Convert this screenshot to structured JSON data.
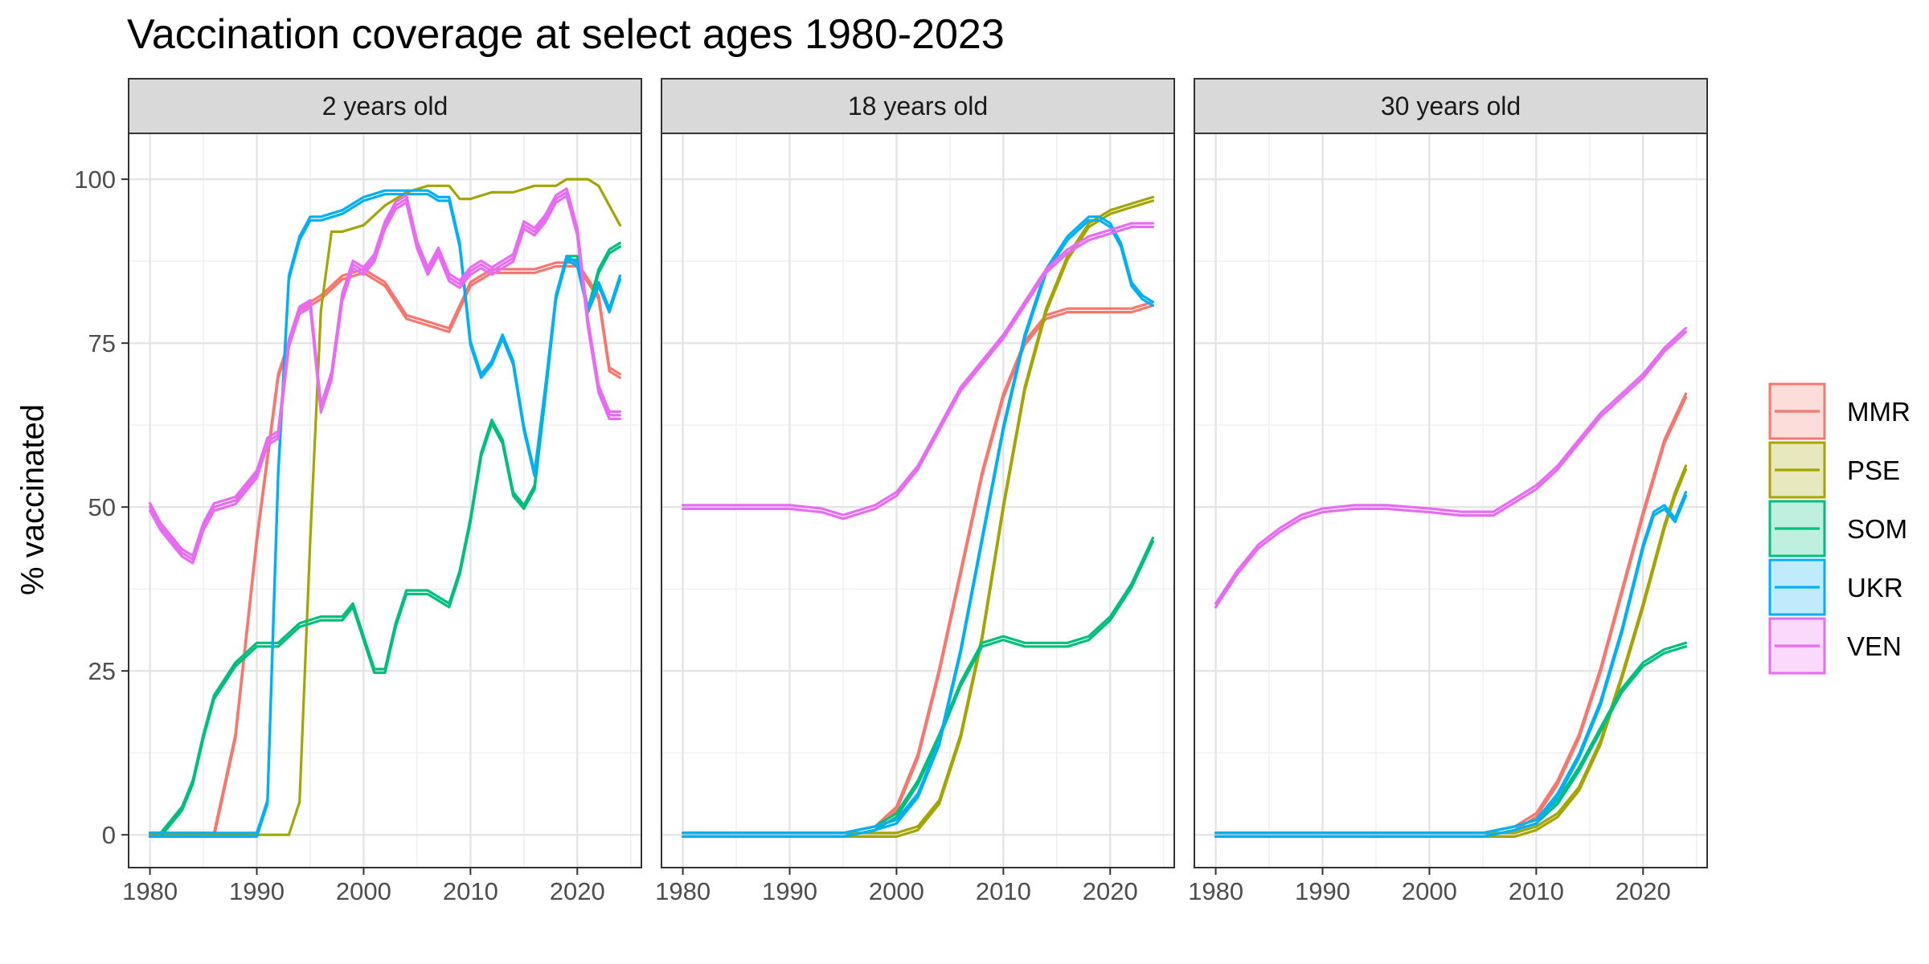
{
  "chart_data": {
    "type": "line",
    "title": "Vaccination coverage at select ages 1980-2023",
    "ylabel": "% vaccinated",
    "xlabel": "",
    "xlim": [
      1978,
      2026
    ],
    "ylim": [
      -5,
      107
    ],
    "x_ticks": [
      1980,
      1990,
      2000,
      2010,
      2020
    ],
    "y_ticks": [
      0,
      25,
      50,
      75,
      100
    ],
    "grid": true,
    "legend_position": "right",
    "colors": {
      "MMR": "#F8766D",
      "PSE": "#A3A500",
      "SOM": "#00BF7D",
      "UKR": "#00B0F6",
      "VEN": "#E76BF3"
    },
    "legend": [
      "MMR",
      "PSE",
      "SOM",
      "UKR",
      "VEN"
    ],
    "panels": [
      {
        "label": "2 years old",
        "series": [
          {
            "name": "MMR",
            "x": [
              1980,
              1985,
              1986,
              1988,
              1990,
              1992,
              1994,
              1996,
              1998,
              2000,
              2002,
              2004,
              2006,
              2008,
              2010,
              2012,
              2014,
              2016,
              2018,
              2020,
              2022,
              2023,
              2024
            ],
            "y": [
              0,
              0,
              0,
              15,
              45,
              70,
              80,
              82,
              85,
              86,
              84,
              79,
              78,
              77,
              84,
              86,
              86,
              86,
              87,
              87,
              82,
              71,
              70
            ],
            "band": 2
          },
          {
            "name": "PSE",
            "x": [
              1980,
              1992,
              1993,
              1994,
              1995,
              1996,
              1997,
              1998,
              2000,
              2002,
              2004,
              2006,
              2008,
              2009,
              2010,
              2012,
              2014,
              2016,
              2018,
              2019,
              2020,
              2021,
              2022,
              2023,
              2024
            ],
            "y": [
              0,
              0,
              0,
              5,
              45,
              80,
              92,
              92,
              93,
              96,
              98,
              99,
              99,
              97,
              97,
              98,
              98,
              99,
              99,
              100,
              100,
              100,
              99,
              96,
              93
            ],
            "band": 1
          },
          {
            "name": "SOM",
            "x": [
              1980,
              1981,
              1982,
              1983,
              1984,
              1985,
              1986,
              1988,
              1990,
              1992,
              1994,
              1996,
              1998,
              1999,
              2000,
              2001,
              2002,
              2003,
              2004,
              2006,
              2008,
              2009,
              2010,
              2011,
              2012,
              2013,
              2014,
              2015,
              2016,
              2017,
              2018,
              2019,
              2020,
              2021,
              2022,
              2023,
              2024
            ],
            "y": [
              0,
              0,
              2,
              4,
              8,
              15,
              21,
              26,
              29,
              29,
              32,
              33,
              33,
              35,
              30,
              25,
              25,
              32,
              37,
              37,
              35,
              40,
              48,
              58,
              63,
              60,
              52,
              50,
              53,
              67,
              82,
              88,
              88,
              80,
              86,
              89,
              90
            ],
            "band": 2
          },
          {
            "name": "UKR",
            "x": [
              1980,
              1990,
              1991,
              1992,
              1993,
              1994,
              1995,
              1996,
              1998,
              2000,
              2002,
              2004,
              2006,
              2007,
              2008,
              2009,
              2010,
              2011,
              2012,
              2013,
              2014,
              2015,
              2016,
              2017,
              2018,
              2019,
              2020,
              2021,
              2022,
              2023,
              2024
            ],
            "y": [
              0,
              0,
              5,
              55,
              85,
              91,
              94,
              94,
              95,
              97,
              98,
              98,
              98,
              97,
              97,
              90,
              75,
              70,
              72,
              76,
              72,
              62,
              55,
              68,
              82,
              88,
              87,
              80,
              84,
              80,
              85
            ],
            "band": 2
          },
          {
            "name": "VEN",
            "x": [
              1980,
              1981,
              1982,
              1983,
              1984,
              1985,
              1986,
              1988,
              1990,
              1991,
              1992,
              1993,
              1994,
              1995,
              1996,
              1997,
              1998,
              1999,
              2000,
              2001,
              2002,
              2003,
              2004,
              2005,
              2006,
              2007,
              2008,
              2009,
              2010,
              2011,
              2012,
              2013,
              2014,
              2015,
              2016,
              2017,
              2018,
              2019,
              2020,
              2021,
              2022,
              2023,
              2024
            ],
            "y": [
              50,
              47,
              45,
              43,
              42,
              47,
              50,
              51,
              55,
              60,
              61,
              75,
              80,
              81,
              65,
              70,
              82,
              87,
              86,
              88,
              93,
              96,
              97,
              90,
              86,
              89,
              85,
              84,
              86,
              87,
              86,
              87,
              88,
              93,
              92,
              94,
              97,
              98,
              92,
              78,
              68,
              64,
              64
            ],
            "band": 3
          }
        ]
      },
      {
        "label": "18 years old",
        "series": [
          {
            "name": "MMR",
            "x": [
              1980,
              1990,
              1995,
              1998,
              2000,
              2002,
              2004,
              2006,
              2008,
              2010,
              2012,
              2014,
              2016,
              2018,
              2020,
              2022,
              2024
            ],
            "y": [
              0,
              0,
              0,
              1,
              4,
              12,
              25,
              40,
              55,
              67,
              75,
              79,
              80,
              80,
              80,
              80,
              81
            ],
            "band": 2
          },
          {
            "name": "PSE",
            "x": [
              1980,
              1990,
              1998,
              2000,
              2002,
              2004,
              2006,
              2008,
              2010,
              2012,
              2014,
              2016,
              2018,
              2020,
              2022,
              2024
            ],
            "y": [
              0,
              0,
              0,
              0,
              1,
              5,
              15,
              30,
              50,
              68,
              80,
              88,
              93,
              95,
              96,
              97
            ],
            "band": 2
          },
          {
            "name": "SOM",
            "x": [
              1980,
              1990,
              1995,
              1998,
              2000,
              2002,
              2004,
              2006,
              2008,
              2010,
              2012,
              2014,
              2016,
              2018,
              2020,
              2022,
              2024
            ],
            "y": [
              0,
              0,
              0,
              1,
              3,
              8,
              15,
              23,
              29,
              30,
              29,
              29,
              29,
              30,
              33,
              38,
              45
            ],
            "band": 2
          },
          {
            "name": "UKR",
            "x": [
              1980,
              1990,
              1995,
              1998,
              2000,
              2002,
              2004,
              2006,
              2008,
              2010,
              2012,
              2014,
              2016,
              2018,
              2019,
              2020,
              2021,
              2022,
              2023,
              2024
            ],
            "y": [
              0,
              0,
              0,
              1,
              2,
              6,
              14,
              28,
              45,
              62,
              76,
              86,
              91,
              94,
              94,
              93,
              90,
              84,
              82,
              81
            ],
            "band": 2
          },
          {
            "name": "VEN",
            "x": [
              1980,
              1985,
              1990,
              1993,
              1995,
              1998,
              2000,
              2002,
              2004,
              2006,
              2008,
              2010,
              2012,
              2014,
              2016,
              2018,
              2020,
              2022,
              2024
            ],
            "y": [
              50,
              50,
              50,
              49.5,
              48.5,
              50,
              52,
              56,
              62,
              68,
              72,
              76,
              81,
              86,
              89,
              91,
              92,
              93,
              93
            ],
            "band": 2
          }
        ]
      },
      {
        "label": "30 years old",
        "series": [
          {
            "name": "MMR",
            "x": [
              1980,
              2000,
              2005,
              2008,
              2010,
              2012,
              2014,
              2016,
              2018,
              2020,
              2022,
              2024
            ],
            "y": [
              0,
              0,
              0,
              1,
              3,
              8,
              15,
              25,
              37,
              49,
              60,
              67
            ],
            "band": 2
          },
          {
            "name": "PSE",
            "x": [
              1980,
              2000,
              2005,
              2008,
              2010,
              2012,
              2014,
              2016,
              2018,
              2020,
              2022,
              2023,
              2024
            ],
            "y": [
              0,
              0,
              0,
              0,
              1,
              3,
              7,
              14,
              24,
              35,
              47,
              52,
              56
            ],
            "band": 2
          },
          {
            "name": "SOM",
            "x": [
              1980,
              2000,
              2005,
              2008,
              2010,
              2012,
              2014,
              2016,
              2018,
              2020,
              2022,
              2024
            ],
            "y": [
              0,
              0,
              0,
              1,
              2,
              5,
              10,
              16,
              22,
              26,
              28,
              29
            ],
            "band": 2
          },
          {
            "name": "UKR",
            "x": [
              1980,
              2000,
              2005,
              2008,
              2010,
              2012,
              2014,
              2016,
              2018,
              2020,
              2021,
              2022,
              2023,
              2024
            ],
            "y": [
              0,
              0,
              0,
              1,
              2,
              6,
              12,
              20,
              31,
              44,
              49,
              50,
              48,
              52
            ],
            "band": 2
          },
          {
            "name": "VEN",
            "x": [
              1980,
              1982,
              1984,
              1986,
              1988,
              1990,
              1993,
              1996,
              2000,
              2003,
              2006,
              2008,
              2010,
              2012,
              2014,
              2016,
              2018,
              2020,
              2022,
              2024
            ],
            "y": [
              35,
              40,
              44,
              46.5,
              48.5,
              49.5,
              50,
              50,
              49.5,
              49,
              49,
              51,
              53,
              56,
              60,
              64,
              67,
              70,
              74,
              77
            ],
            "band": 2
          }
        ]
      }
    ]
  }
}
